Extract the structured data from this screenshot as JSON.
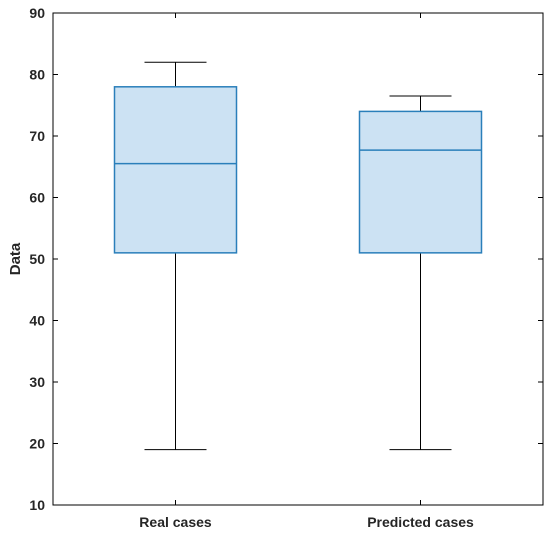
{
  "chart_data": {
    "type": "boxplot",
    "xlabel": "",
    "ylabel": "Data",
    "ylim": [
      10,
      90
    ],
    "yticks": [
      10,
      20,
      30,
      40,
      50,
      60,
      70,
      80,
      90
    ],
    "grid": false,
    "categories": [
      "Real cases",
      "Predicted cases"
    ],
    "boxes": [
      {
        "category": "Real cases",
        "whisker_low": 19,
        "q1": 51,
        "median": 65.5,
        "q3": 78,
        "whisker_high": 82
      },
      {
        "category": "Predicted cases",
        "whisker_low": 19,
        "q1": 51,
        "median": 67.7,
        "q3": 74,
        "whisker_high": 76.5
      }
    ],
    "colors": {
      "box_fill": "#cce2f3",
      "box_edge": "#2a7fba",
      "whisker": "#000000",
      "axis": "#000000"
    }
  }
}
